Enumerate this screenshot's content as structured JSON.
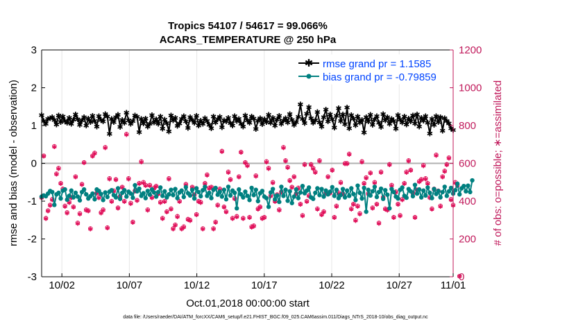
{
  "chart_data": {
    "type": "line",
    "title": "Tropics 54107 / 54617 = 99.066%",
    "subtitle": "ACARS_TEMPERATURE @ 250 hPa",
    "xlabel": "Oct.01,2018 00:00:00 start",
    "ylabel": "rmse and bias (model - observation)",
    "y2label": "# of obs: o=possible; ∗=assimilated",
    "xlim": [
      0.5,
      31.0
    ],
    "ylim": [
      -3,
      3
    ],
    "y2lim": [
      0,
      1200
    ],
    "x_ticks": [
      {
        "x": 2,
        "label": "10/02"
      },
      {
        "x": 7,
        "label": "10/07"
      },
      {
        "x": 12,
        "label": "10/12"
      },
      {
        "x": 17,
        "label": "10/17"
      },
      {
        "x": 22,
        "label": "10/22"
      },
      {
        "x": 27,
        "label": "10/27"
      },
      {
        "x": 32,
        "label": "11/01"
      }
    ],
    "y_ticks": [
      "-3",
      "-2",
      "-1",
      "0",
      "1",
      "2",
      "3"
    ],
    "y2_ticks": [
      "0",
      "200",
      "400",
      "600",
      "800",
      "1000",
      "1200"
    ],
    "zero_line": 0,
    "legend": {
      "position": "top-right",
      "entries": [
        "rmse grand pr = 1.1585",
        "bias grand pr = -0.79859"
      ]
    },
    "series": [
      {
        "name": "rmse grand pr = 1.1585",
        "axis": "left",
        "color": "#000000",
        "marker": "star",
        "values": [
          1.28,
          1.12,
          1.05,
          1.18,
          1.2,
          1.22,
          1.15,
          1.03,
          1.27,
          1.1,
          1.24,
          1.12,
          1.08,
          1.21,
          1.05,
          1.16,
          1.3,
          1.17,
          1.02,
          1.14,
          1.22,
          1.0,
          1.19,
          1.1,
          1.26,
          1.12,
          0.98,
          1.25,
          1.15,
          1.11,
          1.31,
          1.24,
          0.78,
          1.18,
          1.1,
          1.22,
          1.29,
          0.97,
          1.15,
          1.08,
          1.34,
          1.14,
          1.05,
          1.12,
          1.27,
          1.23,
          0.83,
          1.18,
          1.06,
          1.19,
          0.98,
          1.05,
          1.28,
          1.09,
          1.17,
          1.05,
          1.24,
          0.92,
          1.16,
          1.07,
          0.85,
          1.27,
          1.14,
          1.21,
          0.99,
          1.06,
          1.18,
          1.25,
          1.11,
          0.94,
          1.22,
          1.15,
          1.08,
          1.26,
          1.0,
          1.13,
          1.05,
          1.2,
          1.12,
          1.02,
          0.93,
          1.24,
          1.09,
          1.17,
          1.23,
          0.96,
          1.14,
          1.11,
          1.21,
          1.07,
          1.0,
          1.25,
          1.12,
          1.18,
          1.05,
          0.98,
          1.27,
          1.14,
          1.08,
          1.24,
          1.19,
          0.91,
          1.13,
          1.2,
          1.04,
          1.17,
          1.1,
          1.29,
          1.08,
          1.21,
          1.0,
          1.16,
          1.26,
          1.05,
          1.13,
          1.2,
          1.09,
          1.31,
          1.15,
          1.02,
          1.1,
          1.23,
          1.56,
          1.18,
          1.07,
          1.32,
          1.49,
          1.2,
          1.08,
          1.14,
          1.36,
          1.09,
          0.98,
          1.22,
          1.43,
          1.11,
          1.3,
          1.17,
          0.95,
          1.26,
          1.46,
          1.12,
          1.3,
          1.04,
          1.48,
          0.93,
          1.28,
          1.19,
          1.01,
          1.24,
          1.09,
          1.15,
          0.82,
          1.22,
          1.11,
          1.29,
          1.02,
          1.17,
          1.25,
          1.08,
          0.97,
          1.31,
          1.14,
          1.22,
          1.05,
          1.18,
          1.12,
          0.92,
          1.28,
          1.16,
          1.09,
          1.24,
          1.03,
          1.19,
          1.11,
          1.27,
          1.06,
          1.3,
          0.98,
          1.21,
          1.13,
          1.25,
          1.08,
          0.79,
          1.18,
          1.02,
          1.25,
          1.1,
          1.22,
          0.87,
          1.2,
          1.12,
          1.06,
          0.93,
          0.88
        ]
      },
      {
        "name": "bias grand pr = -0.79859",
        "axis": "left",
        "color": "#008080",
        "marker": "circle",
        "values": [
          -0.88,
          -0.85,
          -0.87,
          -0.8,
          -0.73,
          -0.76,
          -1.1,
          -0.82,
          -0.78,
          -0.93,
          -0.72,
          -0.69,
          -0.96,
          -0.86,
          -0.72,
          -0.9,
          -0.78,
          -0.88,
          -0.98,
          -0.76,
          -0.69,
          -0.82,
          -0.93,
          -0.87,
          -0.8,
          -0.95,
          -0.69,
          -0.73,
          -0.81,
          -0.97,
          -0.77,
          -0.89,
          -0.75,
          -0.71,
          -0.84,
          -0.9,
          -0.66,
          -0.94,
          -0.78,
          -0.71,
          -0.88,
          -0.75,
          -0.8,
          -0.91,
          -0.58,
          -0.74,
          -0.67,
          -0.86,
          -0.79,
          -0.92,
          -0.73,
          -0.83,
          -0.69,
          -0.77,
          -0.88,
          -0.76,
          -0.64,
          -0.86,
          -0.74,
          -0.9,
          -0.82,
          -0.7,
          -0.84,
          -0.68,
          -0.92,
          -0.77,
          -0.72,
          -0.89,
          -0.63,
          -0.79,
          -0.85,
          -0.7,
          -0.93,
          -0.66,
          -0.76,
          -0.87,
          -0.71,
          -0.62,
          -0.86,
          -0.78,
          -0.92,
          -0.7,
          -0.65,
          -0.83,
          -0.75,
          -0.88,
          -0.7,
          -0.95,
          -0.62,
          -0.85,
          -0.72,
          -0.78,
          -1.19,
          -0.69,
          -0.82,
          -0.9,
          -0.75,
          -0.86,
          -0.97,
          -0.65,
          -0.84,
          -0.7,
          -1.0,
          -0.79,
          -0.73,
          -0.88,
          -0.92,
          -1.15,
          -0.77,
          -0.68,
          -0.95,
          -0.85,
          -1.02,
          -0.62,
          -0.86,
          -0.7,
          -0.99,
          -0.74,
          -1.05,
          -0.88,
          -0.69,
          -0.92,
          -0.77,
          -0.6,
          -0.79,
          -0.72,
          -0.64,
          -0.9,
          -0.94,
          -0.78,
          -0.66,
          -0.84,
          -0.68,
          -0.88,
          -0.72,
          -0.82,
          -0.75,
          -0.63,
          -0.86,
          -0.7,
          -0.92,
          -0.84,
          -0.68,
          -0.9,
          -0.72,
          -0.86,
          -0.66,
          -0.81,
          -0.97,
          -0.59,
          -0.78,
          -0.93,
          -0.65,
          -1.28,
          -0.7,
          -0.85,
          -0.74,
          -0.62,
          -0.89,
          -0.76,
          -0.67,
          -0.94,
          -0.71,
          -0.83,
          -1.19,
          -0.68,
          -0.76,
          -0.88,
          -0.93,
          -0.7,
          -0.64,
          -0.86,
          -0.91,
          -0.68,
          -0.74,
          -0.87,
          -0.57,
          -0.8,
          -0.69,
          -0.9,
          -0.72,
          -0.85,
          -0.64,
          -0.78,
          -0.92,
          -0.68,
          -0.81,
          -0.73,
          -0.9,
          -0.76,
          -0.62,
          -0.86,
          -0.74,
          -0.65,
          -0.8,
          -0.71,
          -0.54,
          -0.82,
          -0.66,
          -0.6,
          -0.74,
          -0.59,
          -0.76,
          -0.45
        ]
      },
      {
        "name": "# of obs possible",
        "axis": "right",
        "marker": "o",
        "color": "#e0105a",
        "values": [
          420,
          640,
          310,
          350,
          380,
          410,
          690,
          545,
          575,
          495,
          465,
          375,
          340,
          395,
          420,
          370,
          530,
          285,
          335,
          490,
          605,
          355,
          350,
          255,
          640,
          655,
          445,
          420,
          340,
          355,
          685,
          260,
          520,
          400,
          455,
          515,
          365,
          425,
          475,
          400,
          755,
          520,
          390,
          290,
          455,
          405,
          495,
          610,
          500,
          485,
          355,
          485,
          420,
          470,
          480,
          440,
          395,
          310,
          400,
          345,
          520,
          360,
          255,
          275,
          320,
          400,
          255,
          265,
          490,
          305,
          300,
          475,
          435,
          330,
          400,
          395,
          255,
          495,
          540,
          470,
          475,
          255,
          290,
          380,
          465,
          665,
          370,
          345,
          555,
          515,
          310,
          415,
          320,
          530,
          660,
          310,
          605,
          590,
          315,
          265,
          270,
          535,
          360,
          370,
          310,
          315,
          610,
          575,
          430,
          500,
          400,
          435,
          355,
          450,
          685,
          615,
          580,
          510,
          475,
          530,
          440,
          470,
          385,
          325,
          595,
          400,
          430,
          595,
          575,
          555,
          360,
          615,
          330,
          345,
          445,
          530,
          445,
          565,
          315,
          375,
          445,
          500,
          440,
          600,
          600,
          650,
          360,
          385,
          300,
          375,
          335,
          610,
          495,
          525,
          440,
          550,
          365,
          500,
          385,
          285,
          555,
          420,
          360,
          355,
          595,
          485,
          315,
          450,
          385,
          325,
          410,
          495,
          555,
          615,
          565,
          445,
          315,
          460,
          505,
          515,
          590,
          520,
          495,
          420,
          360,
          465,
          645,
          455,
          375,
          530,
          560,
          595,
          630,
          410,
          380,
          500,
          485,
          3
        ]
      },
      {
        "name": "# of obs assimilated",
        "axis": "right",
        "marker": "star",
        "color": "#e0105a",
        "values": [
          418,
          638,
          308,
          348,
          378,
          408,
          688,
          543,
          573,
          493,
          463,
          373,
          338,
          393,
          418,
          368,
          528,
          283,
          333,
          488,
          603,
          353,
          348,
          253,
          638,
          653,
          443,
          418,
          338,
          353,
          683,
          258,
          518,
          398,
          453,
          513,
          363,
          423,
          473,
          398,
          753,
          518,
          388,
          288,
          453,
          403,
          493,
          608,
          498,
          483,
          353,
          483,
          418,
          468,
          478,
          438,
          393,
          308,
          398,
          343,
          518,
          358,
          253,
          273,
          318,
          398,
          253,
          263,
          488,
          303,
          298,
          473,
          433,
          328,
          398,
          393,
          253,
          493,
          538,
          468,
          473,
          253,
          288,
          378,
          463,
          663,
          368,
          343,
          553,
          513,
          308,
          413,
          318,
          528,
          658,
          308,
          603,
          588,
          313,
          263,
          268,
          533,
          358,
          368,
          308,
          313,
          608,
          573,
          428,
          498,
          398,
          433,
          353,
          448,
          683,
          613,
          578,
          508,
          473,
          528,
          438,
          468,
          383,
          323,
          593,
          398,
          428,
          593,
          573,
          553,
          358,
          613,
          328,
          343,
          443,
          528,
          443,
          563,
          313,
          373,
          443,
          498,
          438,
          598,
          598,
          648,
          358,
          383,
          298,
          373,
          333,
          608,
          493,
          523,
          438,
          548,
          363,
          498,
          383,
          283,
          553,
          418,
          358,
          353,
          593,
          483,
          313,
          448,
          383,
          323,
          408,
          493,
          553,
          613,
          563,
          443,
          313,
          458,
          503,
          513,
          588,
          518,
          493,
          418,
          358,
          463,
          643,
          453,
          373,
          528,
          558,
          593,
          628,
          408,
          378,
          498,
          483,
          3
        ]
      }
    ],
    "footnote": "data file: /Users/raeder/DAI/ATM_forcXX/CAM6_setup/f.e21.FHIST_BGC.f09_025.CAM6assim.011/Diags_NTrS_2018-10/obs_diag_output.nc"
  }
}
